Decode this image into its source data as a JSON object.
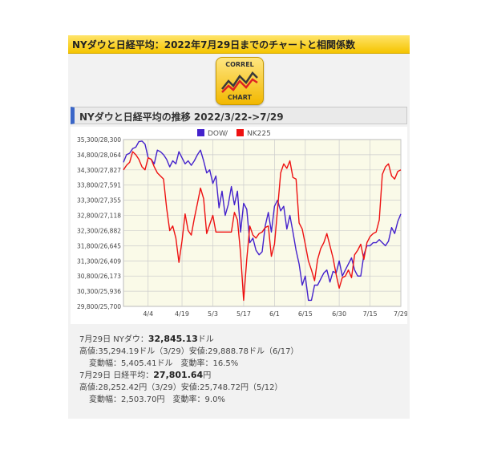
{
  "header": {
    "title": "NYダウと日経平均：2022年7月29日までのチャートと相関係数"
  },
  "logo": {
    "line1": "CORREL",
    "line2": "CHART"
  },
  "section": {
    "title": "NYダウと日経平均の推移 2022/3/22->7/29"
  },
  "colors": {
    "dow": "#4422cc",
    "nk": "#ee1111",
    "plot_bg": "#fafae8",
    "grid": "#cccccc"
  },
  "chart_data": {
    "type": "line",
    "legend": [
      {
        "name": "DOW",
        "color": "#4422cc",
        "separator": "/"
      },
      {
        "name": "NK225",
        "color": "#ee1111"
      }
    ],
    "y_ticks": [
      "35,300/28,300",
      "34,800/28,064",
      "34,300/27,827",
      "33,800/27,591",
      "33,300/27,355",
      "32,800/27,118",
      "32,300/26,882",
      "31,800/26,645",
      "31,300/26,409",
      "30,800/26,173",
      "30,300/25,936",
      "29,800/25,700"
    ],
    "ylim_dow": [
      29800,
      35300
    ],
    "x_ticks": [
      {
        "label": "4/4",
        "index": 8
      },
      {
        "label": "4/19",
        "index": 19
      },
      {
        "label": "5/3",
        "index": 29
      },
      {
        "label": "5/17",
        "index": 39
      },
      {
        "label": "6/1",
        "index": 49
      },
      {
        "label": "6/15",
        "index": 59
      },
      {
        "label": "6/30",
        "index": 70
      },
      {
        "label": "7/15",
        "index": 80
      },
      {
        "label": "7/29",
        "index": 90
      }
    ],
    "n_points": 91,
    "series": [
      {
        "name": "DOW",
        "values": [
          34550,
          34800,
          34850,
          35000,
          35050,
          35230,
          35250,
          35150,
          34700,
          34650,
          34500,
          34950,
          34900,
          34800,
          34650,
          34400,
          34600,
          34500,
          34900,
          34700,
          34500,
          34600,
          34450,
          34600,
          34800,
          34950,
          34600,
          34200,
          34300,
          33850,
          34100,
          33050,
          33600,
          32800,
          33150,
          33750,
          33150,
          33600,
          32250,
          33200,
          33000,
          31900,
          32050,
          31650,
          31500,
          31600,
          32450,
          32900,
          32250,
          33100,
          33300,
          32950,
          33100,
          32350,
          32800,
          32250,
          31650,
          31200,
          30500,
          30800,
          30000,
          30000,
          30500,
          30500,
          30700,
          30900,
          31000,
          30600,
          30950,
          30900,
          31300,
          30800,
          31000,
          31200,
          31400,
          31000,
          30800,
          30800,
          31500,
          31800,
          31800,
          31900,
          31900,
          32000,
          31900,
          31800,
          31950,
          32400,
          32200,
          32600,
          32850
        ]
      },
      {
        "name": "NK225",
        "values": [
          34300,
          34450,
          34550,
          34900,
          34800,
          34650,
          34400,
          34300,
          34700,
          34650,
          34400,
          34200,
          34100,
          34000,
          33050,
          32300,
          32450,
          32050,
          31250,
          31950,
          32850,
          32300,
          32150,
          32700,
          33200,
          33700,
          33350,
          32200,
          32500,
          32800,
          32250,
          32250,
          32250,
          32250,
          32250,
          32250,
          32900,
          32650,
          31550,
          30000,
          31350,
          32450,
          32150,
          32050,
          32200,
          32250,
          32400,
          32450,
          31450,
          31850,
          33000,
          34200,
          34500,
          34350,
          34600,
          34050,
          34000,
          32550,
          32350,
          31850,
          31300,
          31000,
          30650,
          31350,
          31700,
          31900,
          32200,
          31800,
          31400,
          30850,
          30400,
          30750,
          30800,
          31000,
          30750,
          31500,
          31650,
          31850,
          31350,
          31900,
          32100,
          32200,
          32250,
          32650,
          34150,
          34400,
          34500,
          34100,
          34000,
          34250,
          34300
        ]
      }
    ]
  },
  "stats": {
    "line1_prefix": "7月29日 NYダウ：",
    "line1_value": "32,845.13",
    "line1_unit": "ドル",
    "line2": "高値:35,294.19ドル（3/29）安値:29,888.78ドル（6/17）",
    "line3": "変動幅：5,405.41ドル　変動率：16.5%",
    "line4_prefix": "7月29日 日経平均：",
    "line4_value": "27,801.64",
    "line4_unit": "円",
    "line5": "高値:28,252.42円（3/29）安値:25,748.72円（5/12）",
    "line6": "変動幅：2,503.70円　変動率：9.0%"
  }
}
